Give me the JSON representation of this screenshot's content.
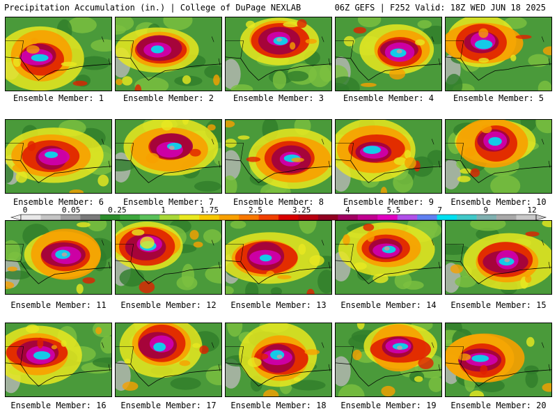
{
  "header": {
    "left": "Precipitation Accumulation (in.) | College of DuPage NEXLAB",
    "right": "06Z GEFS | F252 Valid: 18Z WED JUN 18 2025"
  },
  "members": [
    {
      "label": "Ensemble Member: 1"
    },
    {
      "label": "Ensemble Member: 2"
    },
    {
      "label": "Ensemble Member: 3"
    },
    {
      "label": "Ensemble Member: 4"
    },
    {
      "label": "Ensemble Member: 5"
    },
    {
      "label": "Ensemble Member: 6"
    },
    {
      "label": "Ensemble Member: 7"
    },
    {
      "label": "Ensemble Member: 8"
    },
    {
      "label": "Ensemble Member: 9"
    },
    {
      "label": "Ensemble Member: 10"
    },
    {
      "label": "Ensemble Member: 11"
    },
    {
      "label": "Ensemble Member: 12"
    },
    {
      "label": "Ensemble Member: 13"
    },
    {
      "label": "Ensemble Member: 14"
    },
    {
      "label": "Ensemble Member: 15"
    },
    {
      "label": "Ensemble Member: 16"
    },
    {
      "label": "Ensemble Member: 17"
    },
    {
      "label": "Ensemble Member: 18"
    },
    {
      "label": "Ensemble Member: 19"
    },
    {
      "label": "Ensemble Member: 20"
    }
  ],
  "colorbar": {
    "tick_labels": [
      "0",
      "0.05",
      "0.25",
      "1",
      "1.75",
      "2.5",
      "3.25",
      "4",
      "5.5",
      "7",
      "9",
      "12"
    ],
    "colors": [
      "#e8e8e8",
      "#c4c4c4",
      "#a0a0a0",
      "#7a7a7a",
      "#2c8c2c",
      "#3ca63c",
      "#5ac05a",
      "#a8d838",
      "#e8e820",
      "#f8c800",
      "#f8a000",
      "#f87800",
      "#f04000",
      "#d80000",
      "#b80010",
      "#900020",
      "#a00060",
      "#c00090",
      "#e000c0",
      "#b050e8",
      "#6080f0",
      "#00e0f0",
      "#40c8c8",
      "#80b0b0",
      "#a8a8a8",
      "#c8c8c8"
    ]
  }
}
